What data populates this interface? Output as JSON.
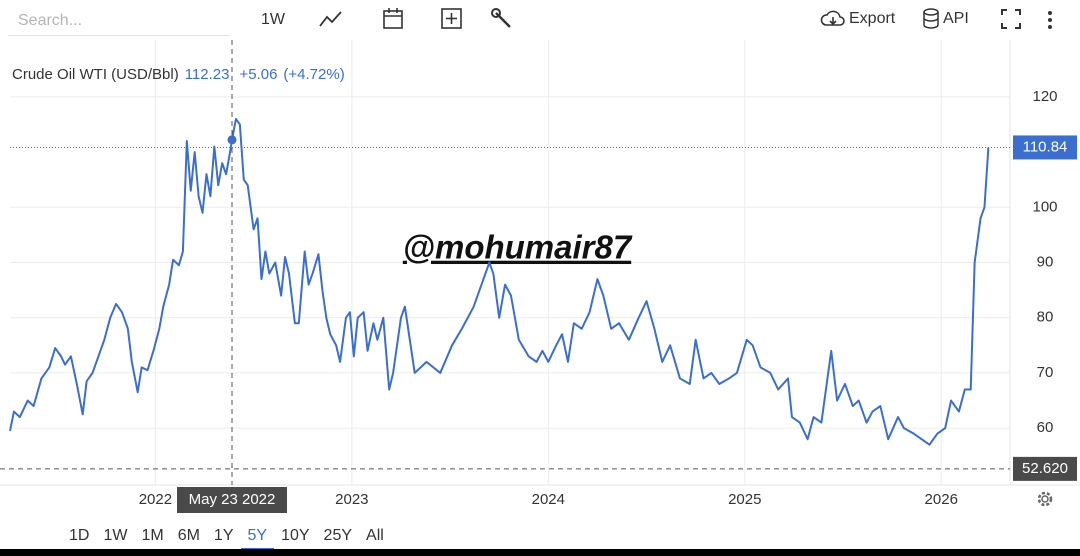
{
  "toolbar": {
    "search_placeholder": "Search...",
    "interval": "1W",
    "export": "Export",
    "api": "API"
  },
  "range_buttons": {
    "items": [
      "1D",
      "1W",
      "1M",
      "6M",
      "1Y",
      "5Y",
      "10Y",
      "25Y",
      "All"
    ],
    "active": "5Y"
  },
  "chart_data": {
    "type": "line",
    "title": "Crude Oil WTI (USD/Bbl)",
    "header_price": "112.23",
    "header_change": "+5.06",
    "header_change_pct": "(+4.72%)",
    "x": [
      2021.26,
      2021.28,
      2021.31,
      2021.35,
      2021.38,
      2021.42,
      2021.46,
      2021.49,
      2021.52,
      2021.54,
      2021.57,
      2021.6,
      2021.63,
      2021.65,
      2021.68,
      2021.71,
      2021.74,
      2021.77,
      2021.8,
      2021.83,
      2021.86,
      2021.88,
      2021.91,
      2021.93,
      2021.96,
      2021.99,
      2022.02,
      2022.04,
      2022.07,
      2022.09,
      2022.12,
      2022.14,
      2022.16,
      2022.18,
      2022.2,
      2022.22,
      2022.24,
      2022.26,
      2022.28,
      2022.3,
      2022.32,
      2022.34,
      2022.36,
      2022.38,
      2022.39,
      2022.41,
      2022.43,
      2022.45,
      2022.47,
      2022.5,
      2022.52,
      2022.54,
      2022.56,
      2022.58,
      2022.61,
      2022.64,
      2022.66,
      2022.68,
      2022.71,
      2022.73,
      2022.76,
      2022.78,
      2022.8,
      2022.83,
      2022.85,
      2022.87,
      2022.89,
      2022.92,
      2022.94,
      2022.97,
      2022.99,
      2023.01,
      2023.03,
      2023.06,
      2023.08,
      2023.11,
      2023.13,
      2023.16,
      2023.19,
      2023.21,
      2023.25,
      2023.27,
      2023.32,
      2023.38,
      2023.45,
      2023.51,
      2023.56,
      2023.62,
      2023.66,
      2023.7,
      2023.72,
      2023.75,
      2023.78,
      2023.81,
      2023.85,
      2023.9,
      2023.94,
      2023.97,
      2024.0,
      2024.04,
      2024.07,
      2024.1,
      2024.13,
      2024.17,
      2024.21,
      2024.25,
      2024.28,
      2024.32,
      2024.36,
      2024.41,
      2024.46,
      2024.5,
      2024.54,
      2024.58,
      2024.62,
      2024.67,
      2024.72,
      2024.75,
      2024.79,
      2024.83,
      2024.87,
      2024.92,
      2024.96,
      2025.01,
      2025.04,
      2025.08,
      2025.13,
      2025.17,
      2025.22,
      2025.24,
      2025.28,
      2025.32,
      2025.35,
      2025.39,
      2025.44,
      2025.47,
      2025.51,
      2025.55,
      2025.58,
      2025.62,
      2025.65,
      2025.69,
      2025.73,
      2025.78,
      2025.81,
      2025.86,
      2025.9,
      2025.94,
      2025.98,
      2026.02,
      2026.05,
      2026.09,
      2026.12,
      2026.15,
      2026.17,
      2026.2,
      2026.22,
      2026.24
    ],
    "series": [
      {
        "color": "#3a6fd0",
        "values": [
          59.5,
          63,
          62,
          65,
          64,
          69,
          71,
          74.5,
          73,
          71.5,
          73,
          68,
          62.5,
          68.5,
          70,
          73,
          76,
          80,
          82.5,
          81,
          78,
          72,
          66.5,
          71,
          70.5,
          74,
          78,
          82,
          86,
          90.5,
          89.5,
          92,
          112,
          103,
          110,
          102,
          99,
          106,
          102,
          111,
          104,
          108,
          106,
          110,
          112.23,
          116,
          115,
          105,
          104,
          96,
          98,
          87,
          92,
          88,
          90,
          84,
          91,
          88,
          79,
          79,
          92,
          86,
          88,
          91.5,
          85,
          80,
          77,
          75,
          72,
          80,
          81,
          73,
          80,
          81,
          74,
          79,
          76,
          80,
          67,
          70,
          80,
          82,
          70,
          72,
          70,
          75,
          78,
          82,
          86,
          90,
          88,
          80,
          86,
          84,
          76,
          73,
          72,
          74,
          72,
          75,
          77,
          72,
          79,
          78,
          81,
          87,
          84,
          78,
          79,
          76,
          80,
          83,
          78,
          72,
          75,
          69,
          68,
          76,
          69,
          70,
          68,
          69,
          70,
          76,
          75,
          71,
          70,
          67,
          69,
          62,
          61,
          58,
          62,
          61,
          74,
          65,
          68,
          64,
          65,
          61,
          63,
          64,
          58,
          62,
          60,
          59,
          58,
          57,
          59,
          60,
          65,
          63,
          67,
          67,
          90,
          98,
          100,
          110.84
        ]
      }
    ],
    "xlim": [
      2021.26,
      2026.35
    ],
    "xticks": [
      2022,
      2023,
      2024,
      2025,
      2026
    ],
    "ylim": [
      49.7,
      130.3
    ],
    "yticks": [
      60,
      70,
      80,
      90,
      100,
      120
    ],
    "grid": true,
    "watermark": "@mohumair87",
    "crosshair": {
      "x": 2022.39,
      "x_label": "May 23 2022",
      "y": 112.23
    },
    "last_price": 110.84,
    "low_line": {
      "value": 52.62,
      "label": "52.620"
    }
  }
}
